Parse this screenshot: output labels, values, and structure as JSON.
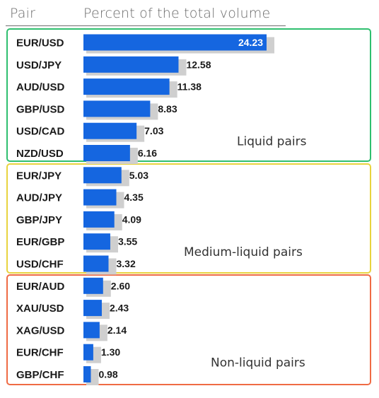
{
  "header": {
    "pair_label": "Pair",
    "volume_label": "Percent of the total volume"
  },
  "colors": {
    "bar": "#1566e0",
    "bar_shadow": "#cfcfcf",
    "liquid_border": "#2fbf6f",
    "medium_border": "#e8d33f",
    "nonliquid_border": "#ef6b44"
  },
  "chart_data": {
    "type": "bar",
    "orientation": "horizontal",
    "xlabel": "Percent of the total volume",
    "ylabel": "Pair",
    "xlim": [
      0,
      24.23
    ],
    "categories": [
      "EUR/USD",
      "USD/JPY",
      "AUD/USD",
      "GBP/USD",
      "USD/CAD",
      "NZD/USD",
      "EUR/JPY",
      "AUD/JPY",
      "GBP/JPY",
      "EUR/GBP",
      "USD/CHF",
      "EUR/AUD",
      "XAU/USD",
      "XAG/USD",
      "EUR/CHF",
      "GBP/CHF"
    ],
    "values": [
      24.23,
      12.58,
      11.38,
      8.83,
      7.03,
      6.16,
      5.03,
      4.35,
      4.09,
      3.55,
      3.32,
      2.6,
      2.43,
      2.14,
      1.3,
      0.98
    ],
    "value_labels": [
      "24.23",
      "12.58",
      "11.38",
      "8.83",
      "7.03",
      "6.16",
      "5.03",
      "4.35",
      "4.09",
      "3.55",
      "3.32",
      "2.60",
      "2.43",
      "2.14",
      "1.30",
      "0.98"
    ],
    "groups": [
      {
        "name": "Liquid pairs",
        "start": 0,
        "end": 5
      },
      {
        "name": "Medium-liquid pairs",
        "start": 6,
        "end": 10
      },
      {
        "name": "Non-liquid pairs",
        "start": 11,
        "end": 15
      }
    ]
  }
}
